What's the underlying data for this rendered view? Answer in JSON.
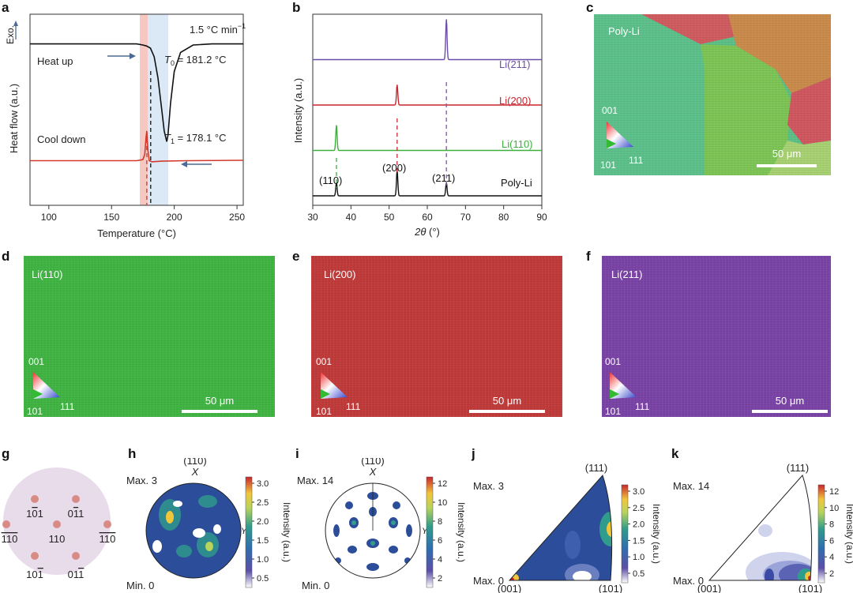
{
  "panels": {
    "a": "a",
    "b": "b",
    "c": "c",
    "d": "d",
    "e": "e",
    "f": "f",
    "g": "g",
    "h": "h",
    "i": "i",
    "j": "j",
    "k": "k"
  },
  "panel_a": {
    "rate": "1.5 °C min",
    "rate_sup": "−1",
    "exo": "Exo.",
    "heat_up": "Heat up",
    "cool_down": "Cool down",
    "t0_sym": "T",
    "t0_sub": "0",
    "t0_val": " = 181.2 °C",
    "t1_sym": "T",
    "t1_sub": "1",
    "t1_val": " = 178.1 °C",
    "colors": {
      "heat": "#111111",
      "cool": "#d33a2c",
      "red_band": "#f6c8c1",
      "blue_band": "#dbe9f6",
      "arrow": "#4b6a94"
    }
  },
  "panel_b": {
    "labels": {
      "li211": "Li(211)",
      "li200": "Li(200)",
      "li110": "Li(110)",
      "poly": "Poly-Li"
    },
    "peaks": {
      "p110": "(110)",
      "p200": "(200)",
      "p211": "(211)"
    },
    "colors": {
      "li211": "#6b4fa8",
      "li200": "#c8262e",
      "li110": "#3bb03b",
      "poly": "#111111"
    }
  },
  "panel_c": {
    "label": "Poly-Li",
    "tri_001": "001",
    "tri_101": "101",
    "tri_111": "111",
    "scale": "50 μm"
  },
  "panel_d": {
    "label": "Li(110)",
    "tri_001": "001",
    "tri_101": "101",
    "tri_111": "111",
    "scale": "50 μm",
    "color": "#3fb442"
  },
  "panel_e": {
    "label": "Li(200)",
    "tri_001": "001",
    "tri_101": "101",
    "tri_111": "111",
    "scale": "50 μm",
    "color": "#c13a3a"
  },
  "panel_f": {
    "label": "Li(211)",
    "tri_001": "001",
    "tri_101": "101",
    "tri_111": "111",
    "scale": "50 μm",
    "color": "#7a43a6"
  },
  "panel_g": {
    "center": "110",
    "top_left": "10̅1",
    "top_right": "01̅1",
    "left": "1̅10",
    "right": "1̅10",
    "bottom_left": "101̅",
    "bottom_right": "011̅",
    "left_text": "110",
    "right_text": "110"
  },
  "panel_h": {
    "title": "(110)",
    "x": "X",
    "y": "Y",
    "max": "Max. 3",
    "min": "Min. 0",
    "cbar_title": "Intensity (a.u.)",
    "cbar_ticks": [
      "3.0",
      "2.5",
      "2.0",
      "1.5",
      "1.0",
      "0.5"
    ]
  },
  "panel_i": {
    "title": "(110)",
    "x": "X",
    "y": "Y",
    "max": "Max. 14",
    "min": "Min. 0",
    "cbar_title": "Intensity (a.u.)",
    "cbar_ticks": [
      "12",
      "10",
      "8",
      "6",
      "4",
      "2"
    ]
  },
  "panel_j": {
    "max": "Max. 3",
    "min": "Max. 0",
    "c111": "(111)",
    "c001": "(001)",
    "c101": "(101)",
    "cbar_title": "Intensity (a.u.)",
    "cbar_ticks": [
      "3.0",
      "2.5",
      "2.0",
      "1.5",
      "1.0",
      "0.5"
    ]
  },
  "panel_k": {
    "max": "Max. 14",
    "min": "Max. 0",
    "c111": "(111)",
    "c001": "(001)",
    "c101": "(101)",
    "cbar_title": "Intensity (a.u.)",
    "cbar_ticks": [
      "12",
      "10",
      "8",
      "6",
      "4",
      "2"
    ]
  },
  "chart_data": [
    {
      "type": "line",
      "title": "",
      "xlabel": "Temperature (°C)",
      "ylabel": "Heat flow (a.u.)",
      "xlim": [
        85,
        255
      ],
      "xticks": [
        "100",
        "150",
        "200",
        "250"
      ],
      "grid": false,
      "series": [
        {
          "name": "Heat up",
          "x": [
            85,
            160,
            170,
            175,
            178,
            181,
            184,
            187,
            190,
            192,
            194,
            195,
            197,
            200,
            205,
            215,
            230,
            255
          ],
          "y": [
            7.6,
            7.6,
            7.6,
            7.55,
            7.5,
            7.4,
            7.0,
            6.0,
            4.5,
            3.5,
            3.0,
            3.3,
            4.8,
            6.3,
            7.2,
            7.55,
            7.6,
            7.6
          ]
        },
        {
          "name": "Cool down",
          "x": [
            85,
            160,
            170,
            175,
            176.5,
            177.5,
            178.1,
            179,
            180,
            182,
            190,
            210,
            255
          ],
          "y": [
            2.1,
            2.1,
            2.1,
            2.15,
            2.4,
            3.2,
            3.5,
            2.6,
            2.1,
            2.05,
            2.08,
            2.1,
            2.12
          ]
        }
      ],
      "annotations": [
        "T0 = 181.2 °C",
        "T1 = 178.1 °C",
        "1.5 °C min−1"
      ]
    },
    {
      "type": "line",
      "title": "",
      "xlabel": "2θ (°)",
      "ylabel": "Intensity (a.u.)",
      "xlim": [
        30,
        90
      ],
      "xticks": [
        "30",
        "40",
        "50",
        "60",
        "70",
        "80",
        "90"
      ],
      "grid": false,
      "series": [
        {
          "name": "Poly-Li",
          "baseline": 0,
          "peaks": [
            {
              "x": 36.2,
              "h": 1.3
            },
            {
              "x": 52.1,
              "h": 2.5
            },
            {
              "x": 65.0,
              "h": 1.3
            }
          ]
        },
        {
          "name": "Li(110)",
          "baseline": 4.5,
          "peaks": [
            {
              "x": 36.2,
              "h": 2.5
            }
          ]
        },
        {
          "name": "Li(200)",
          "baseline": 9.0,
          "peaks": [
            {
              "x": 52.1,
              "h": 2.0
            }
          ]
        },
        {
          "name": "Li(211)",
          "baseline": 13.5,
          "peaks": [
            {
              "x": 65.0,
              "h": 4.0
            }
          ]
        }
      ],
      "peak_labels": [
        "(110)",
        "(200)",
        "(211)"
      ]
    }
  ]
}
